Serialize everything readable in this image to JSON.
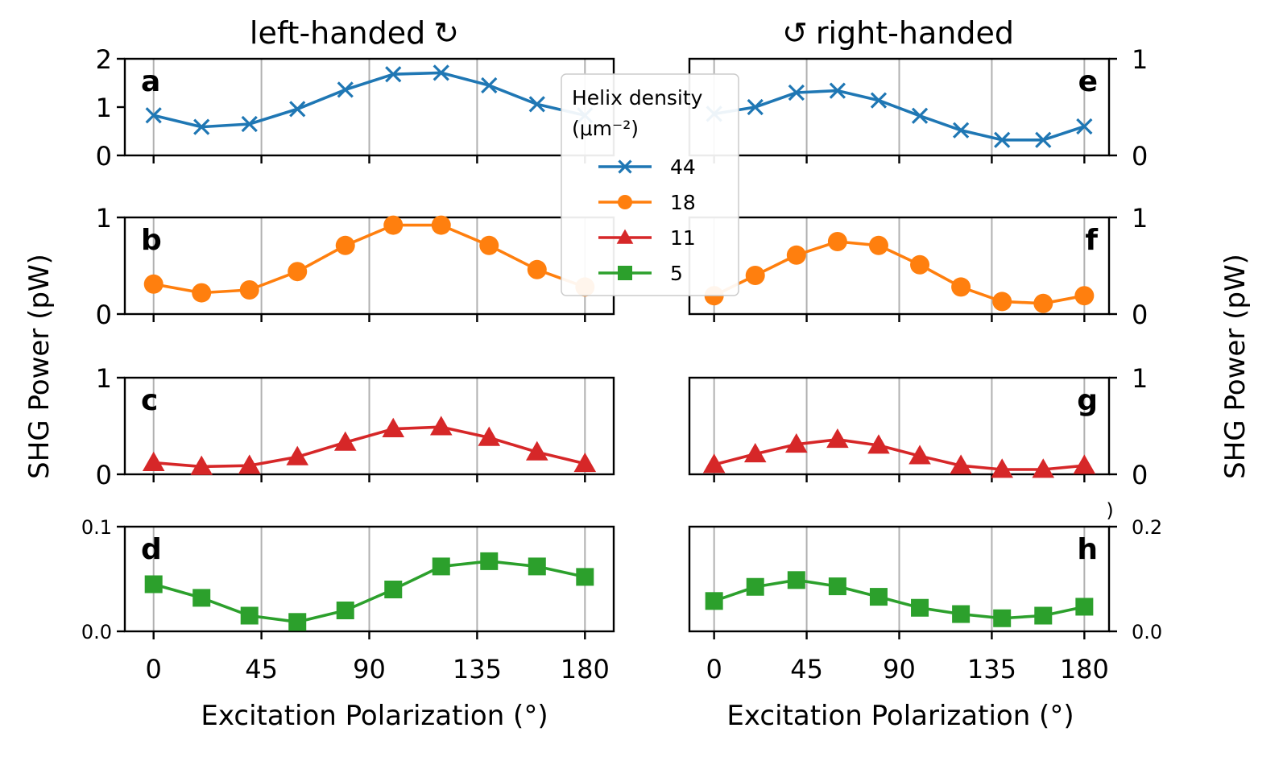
{
  "titles": {
    "left": "left-handed",
    "right": "right-handed",
    "left_arrow": "↻",
    "right_arrow": "↺"
  },
  "axis_labels": {
    "x": "Excitation Polarization (°)",
    "y": "SHG Power (pW)",
    "stray_mark": ")"
  },
  "legend": {
    "title_line1": "Helix density",
    "title_line2": "(μm⁻²)",
    "entries": [
      {
        "label": "44",
        "color": "#1f77b4",
        "marker": "x"
      },
      {
        "label": "18",
        "color": "#ff7f0e",
        "marker": "circle"
      },
      {
        "label": "11",
        "color": "#d62728",
        "marker": "triangle"
      },
      {
        "label": "5",
        "color": "#2ca02c",
        "marker": "square"
      }
    ]
  },
  "chart_data": [
    {
      "type": "line",
      "panel": "a",
      "column": "left",
      "series_name": "44",
      "color": "#1f77b4",
      "marker": "x",
      "x": [
        0,
        20,
        40,
        60,
        80,
        100,
        120,
        140,
        160,
        180
      ],
      "y": [
        0.83,
        0.59,
        0.65,
        0.96,
        1.36,
        1.68,
        1.71,
        1.45,
        1.06,
        0.83
      ],
      "ylim": [
        0,
        2
      ],
      "yticks": [
        "0",
        "1",
        "2"
      ],
      "ytick_values": [
        0,
        1,
        2
      ],
      "yaxis_side": "left"
    },
    {
      "type": "line",
      "panel": "b",
      "column": "left",
      "series_name": "18",
      "color": "#ff7f0e",
      "marker": "circle",
      "x": [
        0,
        20,
        40,
        60,
        80,
        100,
        120,
        140,
        160,
        180
      ],
      "y": [
        0.31,
        0.22,
        0.25,
        0.44,
        0.71,
        0.92,
        0.92,
        0.71,
        0.46,
        0.28
      ],
      "ylim": [
        0,
        1
      ],
      "yticks": [
        "0",
        "1"
      ],
      "ytick_values": [
        0,
        1
      ],
      "yaxis_side": "left"
    },
    {
      "type": "line",
      "panel": "c",
      "column": "left",
      "series_name": "11",
      "color": "#d62728",
      "marker": "triangle",
      "x": [
        0,
        20,
        40,
        60,
        80,
        100,
        120,
        140,
        160,
        180
      ],
      "y": [
        0.12,
        0.08,
        0.09,
        0.18,
        0.33,
        0.47,
        0.49,
        0.38,
        0.23,
        0.11
      ],
      "ylim": [
        0,
        1
      ],
      "yticks": [
        "0",
        "1"
      ],
      "ytick_values": [
        0,
        1
      ],
      "yaxis_side": "left"
    },
    {
      "type": "line",
      "panel": "d",
      "column": "left",
      "series_name": "5",
      "color": "#2ca02c",
      "marker": "square",
      "x": [
        0,
        20,
        40,
        60,
        80,
        100,
        120,
        140,
        160,
        180
      ],
      "y": [
        0.045,
        0.032,
        0.015,
        0.009,
        0.02,
        0.04,
        0.062,
        0.067,
        0.062,
        0.052
      ],
      "err": [
        0.005,
        0.004,
        0.004,
        0.003,
        0.004,
        0.005,
        0.007,
        0.007,
        0.006,
        0.006
      ],
      "ylim": [
        0,
        0.1
      ],
      "yticks": [
        "0.0",
        "0.1"
      ],
      "ytick_values": [
        0,
        0.1
      ],
      "yaxis_side": "left"
    },
    {
      "type": "line",
      "panel": "e",
      "column": "right",
      "series_name": "44",
      "color": "#1f77b4",
      "marker": "x",
      "x": [
        0,
        20,
        40,
        60,
        80,
        100,
        120,
        140,
        160,
        180
      ],
      "y": [
        0.43,
        0.5,
        0.65,
        0.67,
        0.57,
        0.41,
        0.26,
        0.16,
        0.16,
        0.3
      ],
      "ylim": [
        0,
        1
      ],
      "yticks": [
        "0",
        "1"
      ],
      "ytick_values": [
        0,
        1
      ],
      "yaxis_side": "right"
    },
    {
      "type": "line",
      "panel": "f",
      "column": "right",
      "series_name": "18",
      "color": "#ff7f0e",
      "marker": "circle",
      "x": [
        0,
        20,
        40,
        60,
        80,
        100,
        120,
        140,
        160,
        180
      ],
      "y": [
        0.19,
        0.4,
        0.61,
        0.75,
        0.71,
        0.51,
        0.28,
        0.13,
        0.11,
        0.19
      ],
      "ylim": [
        0,
        1
      ],
      "yticks": [
        "0",
        "1"
      ],
      "ytick_values": [
        0,
        1
      ],
      "yaxis_side": "right"
    },
    {
      "type": "line",
      "panel": "g",
      "column": "right",
      "series_name": "11",
      "color": "#d62728",
      "marker": "triangle",
      "x": [
        0,
        20,
        40,
        60,
        80,
        100,
        120,
        140,
        160,
        180
      ],
      "y": [
        0.1,
        0.21,
        0.31,
        0.36,
        0.3,
        0.19,
        0.09,
        0.05,
        0.05,
        0.09
      ],
      "ylim": [
        0,
        1
      ],
      "yticks": [
        "0",
        "1"
      ],
      "ytick_values": [
        0,
        1
      ],
      "yaxis_side": "right"
    },
    {
      "type": "line",
      "panel": "h",
      "column": "right",
      "series_name": "5",
      "color": "#2ca02c",
      "marker": "square",
      "x": [
        0,
        20,
        40,
        60,
        80,
        100,
        120,
        140,
        160,
        180
      ],
      "y": [
        0.058,
        0.085,
        0.098,
        0.086,
        0.066,
        0.045,
        0.033,
        0.025,
        0.03,
        0.047
      ],
      "err": [
        0,
        0,
        0,
        0,
        0,
        0,
        0,
        0,
        0,
        0
      ],
      "ylim": [
        0,
        0.2
      ],
      "yticks": [
        "0.0",
        "0.2"
      ],
      "ytick_values": [
        0,
        0.2
      ],
      "yaxis_side": "right"
    }
  ],
  "x_axis": {
    "xlim": [
      -12,
      192
    ],
    "tick_values": [
      0,
      45,
      90,
      135,
      180
    ],
    "tick_labels": [
      "0",
      "45",
      "90",
      "135",
      "180"
    ]
  }
}
